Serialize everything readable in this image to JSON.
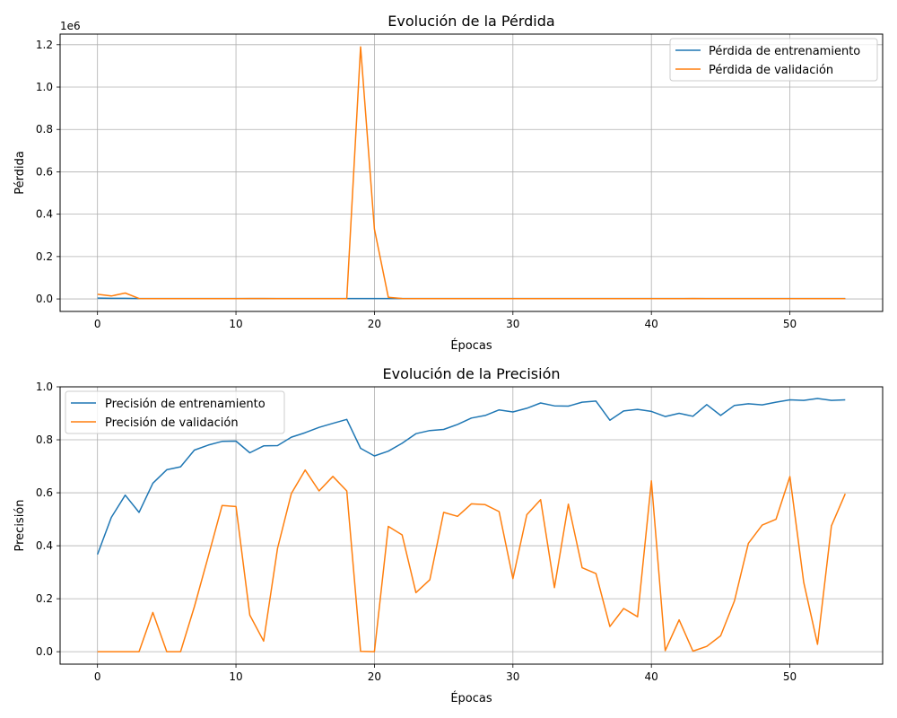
{
  "colors": {
    "train": "#1f77b4",
    "val": "#ff7f0e",
    "grid": "#b0b0b0"
  },
  "chart_data": [
    {
      "type": "line",
      "title": "Evolución de la Pérdida",
      "xlabel": "Épocas",
      "ylabel": "Pérdida",
      "offset_label": "1e6",
      "y_scale_factor": 1000000,
      "xlim": [
        -2.7,
        56.7
      ],
      "ylim": [
        -0.059,
        1.25
      ],
      "xticks": [
        0,
        10,
        20,
        30,
        40,
        50
      ],
      "xtick_labels": [
        "0",
        "10",
        "20",
        "30",
        "40",
        "50"
      ],
      "yticks": [
        0,
        0.2,
        0.4,
        0.6,
        0.8,
        1.0,
        1.2
      ],
      "ytick_labels": [
        "0.0",
        "0.2",
        "0.4",
        "0.6",
        "0.8",
        "1.0",
        "1.2"
      ],
      "grid": true,
      "legend_position": "top-right",
      "series": [
        {
          "name": "Pérdida de entrenamiento",
          "color_key": "train",
          "values": [
            0.004,
            0.003,
            0.003,
            0.002,
            0.002,
            0.002,
            0.002,
            0.002,
            0.002,
            0.002,
            0.002,
            0.002,
            0.002,
            0.002,
            0.002,
            0.002,
            0.002,
            0.002,
            0.002,
            0.002,
            0.002,
            0.002,
            0.002,
            0.002,
            0.002,
            0.002,
            0.002,
            0.002,
            0.002,
            0.002,
            0.002,
            0.002,
            0.002,
            0.002,
            0.002,
            0.002,
            0.002,
            0.002,
            0.002,
            0.002,
            0.002,
            0.002,
            0.002,
            0.002,
            0.002,
            0.002,
            0.002,
            0.002,
            0.002,
            0.002,
            0.002,
            0.002,
            0.002,
            0.002,
            0.002
          ]
        },
        {
          "name": "Pérdida de validación",
          "color_key": "val",
          "values": [
            0.022,
            0.014,
            0.028,
            0.002,
            0.001,
            0.001,
            0.001,
            0.001,
            0.001,
            0.001,
            0.001,
            0.002,
            0.002,
            0.001,
            0.001,
            0.001,
            0.001,
            0.001,
            0.001,
            1.19,
            0.33,
            0.008,
            0.002,
            0.001,
            0.001,
            0.001,
            0.001,
            0.001,
            0.001,
            0.001,
            0.001,
            0.001,
            0.001,
            0.001,
            0.001,
            0.001,
            0.001,
            0.001,
            0.001,
            0.001,
            0.001,
            0.001,
            0.001,
            0.002,
            0.001,
            0.001,
            0.001,
            0.001,
            0.001,
            0.001,
            0.001,
            0.001,
            0.001,
            0.001,
            0.001
          ]
        }
      ]
    },
    {
      "type": "line",
      "title": "Evolución de la Precisión",
      "xlabel": "Épocas",
      "ylabel": "Precisión",
      "xlim": [
        -2.7,
        56.7
      ],
      "ylim": [
        -0.047,
        1.0
      ],
      "xticks": [
        0,
        10,
        20,
        30,
        40,
        50
      ],
      "xtick_labels": [
        "0",
        "10",
        "20",
        "30",
        "40",
        "50"
      ],
      "yticks": [
        0,
        0.2,
        0.4,
        0.6,
        0.8,
        1.0
      ],
      "ytick_labels": [
        "0.0",
        "0.2",
        "0.4",
        "0.6",
        "0.8",
        "1.0"
      ],
      "grid": true,
      "legend_position": "top-left",
      "series": [
        {
          "name": "Precisión de entrenamiento",
          "color_key": "train",
          "values": [
            0.367,
            0.507,
            0.591,
            0.526,
            0.636,
            0.687,
            0.698,
            0.761,
            0.78,
            0.794,
            0.795,
            0.751,
            0.777,
            0.778,
            0.81,
            0.827,
            0.847,
            0.862,
            0.877,
            0.768,
            0.739,
            0.757,
            0.787,
            0.823,
            0.835,
            0.839,
            0.858,
            0.882,
            0.892,
            0.913,
            0.905,
            0.919,
            0.939,
            0.928,
            0.927,
            0.942,
            0.946,
            0.874,
            0.909,
            0.915,
            0.907,
            0.888,
            0.9,
            0.889,
            0.933,
            0.892,
            0.93,
            0.936,
            0.932,
            0.942,
            0.951,
            0.949,
            0.956,
            0.949,
            0.951
          ]
        },
        {
          "name": "Precisión de validación",
          "color_key": "val",
          "values": [
            0.0,
            0.0,
            0.0,
            0.0,
            0.148,
            0.0,
            0.0,
            0.17,
            0.36,
            0.552,
            0.548,
            0.138,
            0.04,
            0.39,
            0.597,
            0.686,
            0.607,
            0.662,
            0.607,
            0.001,
            0.0,
            0.473,
            0.441,
            0.223,
            0.272,
            0.526,
            0.511,
            0.558,
            0.555,
            0.529,
            0.276,
            0.517,
            0.574,
            0.242,
            0.557,
            0.317,
            0.295,
            0.095,
            0.163,
            0.132,
            0.645,
            0.004,
            0.12,
            0.002,
            0.02,
            0.06,
            0.192,
            0.409,
            0.478,
            0.5,
            0.661,
            0.262,
            0.028,
            0.475,
            0.596
          ]
        }
      ]
    }
  ]
}
